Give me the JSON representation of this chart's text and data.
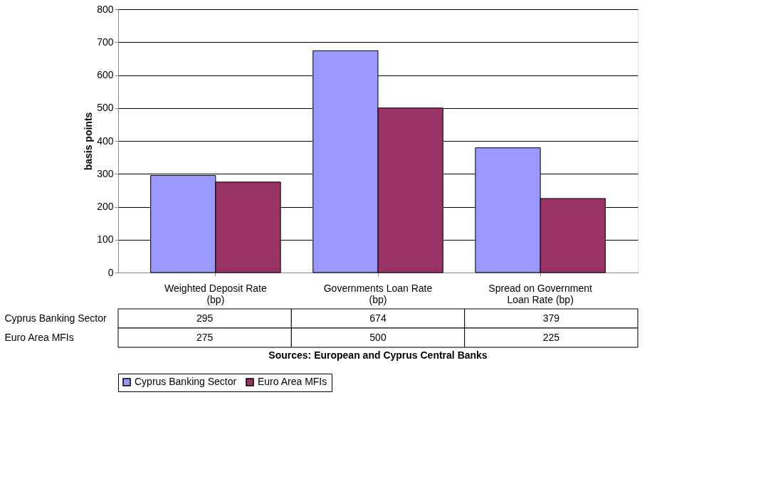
{
  "chart_data": {
    "type": "bar",
    "ylabel": "basis points",
    "categories": [
      "Weighted Deposit Rate (bp)",
      "Governments Loan Rate (bp)",
      "Spread on Government Loan Rate (bp)"
    ],
    "series": [
      {
        "name": "Cyprus Banking Sector",
        "color": "#9999ff",
        "values": [
          295,
          674,
          379
        ]
      },
      {
        "name": "Euro Area MFIs",
        "color": "#993366",
        "values": [
          275,
          500,
          225
        ]
      }
    ],
    "ylim": [
      0,
      800
    ],
    "yticks": [
      0,
      100,
      200,
      300,
      400,
      500,
      600,
      700,
      800
    ],
    "grid": "y",
    "legend": "bottom",
    "data_labels": true,
    "annotations": [
      "Sources: European and Cyprus Central Banks"
    ]
  }
}
